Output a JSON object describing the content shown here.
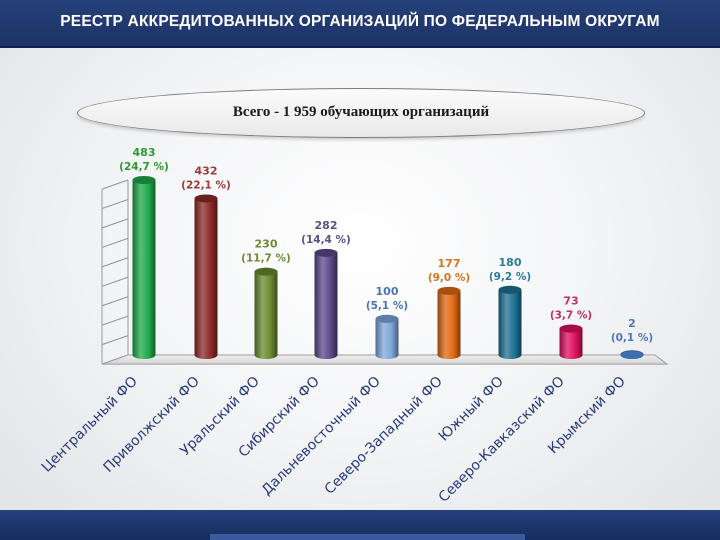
{
  "header": {
    "title": "РЕЕСТР АККРЕДИТОВАННЫХ ОРГАНИЗАЦИЙ ПО ФЕДЕРАЛЬНЫМ ОКРУГАМ"
  },
  "summary": {
    "text": "Всего -  1 959  обучающих организаций"
  },
  "chart_data": {
    "type": "bar",
    "title": "",
    "xlabel": "",
    "ylabel": "",
    "ylim": [
      0,
      483
    ],
    "grid": true,
    "categories": [
      "Центральный ФО",
      "Приволжский ФО",
      "Уральский ФО",
      "Сибирский ФО",
      "Дальневосточный ФО",
      "Северо-Западный ФО",
      "Южный ФО",
      "Северо-Кавказский ФО",
      "Крымский ФО"
    ],
    "values": [
      483,
      432,
      230,
      282,
      100,
      177,
      180,
      73,
      2
    ],
    "percent_labels": [
      "(24,7 %)",
      "(22,1 %)",
      "(11,7 %)",
      "(14,4 %)",
      "(5,1 %)",
      "(9,0 %)",
      "(9,2 %)",
      "(3,7 %)",
      "(0,1 %)"
    ],
    "colors": [
      "#1faa4a",
      "#8e2a2a",
      "#6b8a30",
      "#5b4a8a",
      "#7ea7dc",
      "#e06a12",
      "#1e7294",
      "#e01060",
      "#3c6fb0"
    ],
    "label_colors": [
      "#2f9a2f",
      "#9a3b3b",
      "#6f8a32",
      "#5b4f86",
      "#4a73b8",
      "#d9731c",
      "#2b7c96",
      "#c0305a",
      "#4b78b6"
    ]
  }
}
